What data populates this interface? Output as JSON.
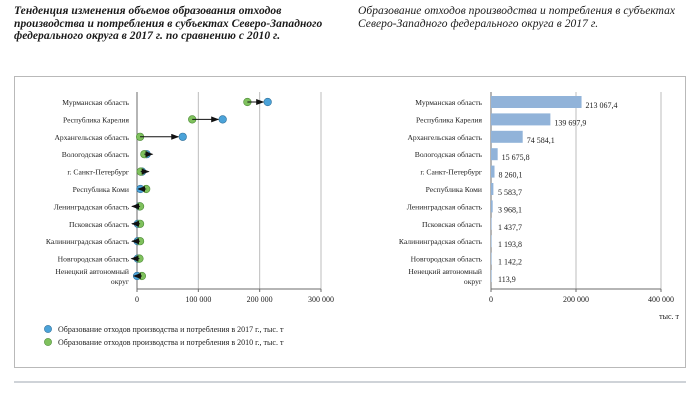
{
  "headings": {
    "left": "Тенденция изменения объемов образования отходов производства и потребления в субъектах Северо-Западного федерального округа в 2017 г. по сравнению с 2010 г.",
    "right": "Образование отходов производства и потребления в субъектах Северо-Западного федерального округа в 2017 г."
  },
  "colors": {
    "series_2017": "#4ba3d9",
    "series_2010": "#7fc15d",
    "bar": "#91b3d9",
    "grid": "#bdbdbd",
    "axis": "#6b6b6b",
    "frame": "#b9b9b9"
  },
  "chart_data": [
    {
      "type": "scatter",
      "subtype": "dumbbell",
      "categories": [
        "Мурманская область",
        "Республика Карелия",
        "Архангельская область",
        "Вологодская область",
        "г. Санкт-Петербург",
        "Республика Коми",
        "Ленинградская область",
        "Псковская область",
        "Калининградская область",
        "Новгородская область",
        "Ненецкий автономный округ"
      ],
      "series": [
        {
          "name": "Образование отходов производства и потребления в 2017 г., тыс. т",
          "values": [
            213067.4,
            139697.9,
            74584.1,
            15675.8,
            8260.1,
            5583.7,
            3968.1,
            1437.7,
            1193.8,
            1142.2,
            113.9
          ]
        },
        {
          "name": "Образование отходов производства и потребления в 2010 г., тыс. т",
          "values": [
            180000,
            90000,
            5000,
            12000,
            6000,
            15000,
            5000,
            5000,
            5000,
            4000,
            8000
          ]
        }
      ],
      "xlim": [
        0,
        300000
      ],
      "xticks": [
        "0",
        "100 000",
        "200 000",
        "300 000"
      ],
      "grid": "vertical",
      "legend": "bottom"
    },
    {
      "type": "bar",
      "orientation": "horizontal",
      "categories": [
        "Мурманская область",
        "Республика Карелия",
        "Архангельская область",
        "Вологодская область",
        "г. Санкт-Петербург",
        "Республика Коми",
        "Ленинградская область",
        "Псковская область",
        "Калининградская область",
        "Новгородская область",
        "Ненецкий автономный округ"
      ],
      "values": [
        213067.4,
        139697.9,
        74584.1,
        15675.8,
        8260.1,
        5583.7,
        3968.1,
        1437.7,
        1193.8,
        1142.2,
        113.9
      ],
      "data_labels": [
        "213 067,4",
        "139 697,9",
        "74 584,1",
        "15 675,8",
        "8 260,1",
        "5 583,7",
        "3 968,1",
        "1 437,7",
        "1 193,8",
        "1 142,2",
        "113,9"
      ],
      "xlim": [
        0,
        400000
      ],
      "xticks": [
        "0",
        "200 000",
        "400 000"
      ],
      "xlabel": "тыс. т",
      "grid": "vertical"
    }
  ]
}
